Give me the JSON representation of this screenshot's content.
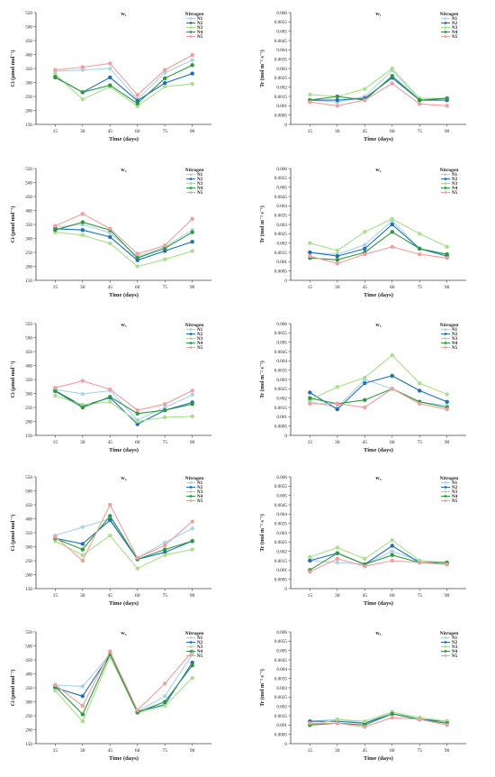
{
  "legend_title": "Nitrogen",
  "series_colors": {
    "N1": "#a8d4ec",
    "N2": "#1f6fb5",
    "N3": "#a8e08c",
    "N4": "#2a9a3c",
    "N5": "#f29e9e"
  },
  "chart_data": [
    {
      "type": "line",
      "title": "w₁",
      "xlabel": "Time (days)",
      "ylabel": "Ci (μmol mol⁻¹)",
      "x": [
        15,
        30,
        45,
        60,
        75,
        90
      ],
      "ylim": [
        150,
        550
      ],
      "yticks": [
        150,
        200,
        250,
        300,
        350,
        400,
        450,
        500,
        550
      ],
      "yticklabels": [
        "150",
        "200",
        "250",
        "300",
        "350",
        "400",
        "450",
        "500",
        "550"
      ],
      "legend": "top-right",
      "series": [
        {
          "name": "N1",
          "values": [
            340,
            345,
            350,
            240,
            335,
            380
          ]
        },
        {
          "name": "N2",
          "values": [
            318,
            265,
            318,
            235,
            298,
            332
          ]
        },
        {
          "name": "N3",
          "values": [
            330,
            240,
            285,
            215,
            285,
            295
          ]
        },
        {
          "name": "N4",
          "values": [
            320,
            265,
            290,
            225,
            315,
            362
          ]
        },
        {
          "name": "N5",
          "values": [
            345,
            355,
            368,
            255,
            345,
            398
          ]
        }
      ]
    },
    {
      "type": "line",
      "title": "w₁",
      "xlabel": "Time (days)",
      "ylabel": "Tr (mol m⁻² s⁻¹)",
      "x": [
        15,
        30,
        45,
        60,
        75,
        90
      ],
      "ylim": [
        0,
        0.006
      ],
      "yticks": [
        0,
        0.0005,
        0.001,
        0.0015,
        0.002,
        0.0025,
        0.003,
        0.0035,
        0.004,
        0.0045,
        0.005,
        0.0055,
        0.006
      ],
      "yticklabels": [
        "0",
        "0.0005",
        "0.001",
        "0.0015",
        "0.002",
        "0.0025",
        "0.003",
        "0.0035",
        "0.004",
        "0.0045",
        "0.005",
        "0.0055",
        "0.006"
      ],
      "legend": "top-right",
      "series": [
        {
          "name": "N1",
          "values": [
            0.0013,
            0.0012,
            0.0015,
            0.0029,
            0.0013,
            0.0013
          ]
        },
        {
          "name": "N2",
          "values": [
            0.0013,
            0.0013,
            0.0014,
            0.0025,
            0.0013,
            0.0013
          ]
        },
        {
          "name": "N3",
          "values": [
            0.0016,
            0.0015,
            0.0019,
            0.003,
            0.0014,
            0.0014
          ]
        },
        {
          "name": "N4",
          "values": [
            0.0013,
            0.0015,
            0.0013,
            0.0026,
            0.0013,
            0.0014
          ]
        },
        {
          "name": "N5",
          "values": [
            0.0012,
            0.001,
            0.0013,
            0.0022,
            0.0011,
            0.001
          ]
        }
      ]
    },
    {
      "type": "line",
      "title": "w₂",
      "xlabel": "Time (days)",
      "ylabel": "Ci (μmol mol⁻¹)",
      "x": [
        15,
        30,
        45,
        60,
        75,
        90
      ],
      "ylim": [
        150,
        550
      ],
      "yticks": [
        150,
        200,
        250,
        300,
        350,
        400,
        450,
        500,
        550
      ],
      "yticklabels": [
        "150",
        "200",
        "250",
        "300",
        "350",
        "400",
        "450",
        "500",
        "550"
      ],
      "legend": "top-right",
      "series": [
        {
          "name": "N1",
          "values": [
            340,
            350,
            320,
            235,
            270,
            330
          ]
        },
        {
          "name": "N2",
          "values": [
            335,
            330,
            305,
            222,
            255,
            288
          ]
        },
        {
          "name": "N3",
          "values": [
            322,
            312,
            282,
            200,
            225,
            255
          ]
        },
        {
          "name": "N4",
          "values": [
            330,
            358,
            330,
            230,
            265,
            322
          ]
        },
        {
          "name": "N5",
          "values": [
            345,
            388,
            335,
            245,
            275,
            370
          ]
        }
      ]
    },
    {
      "type": "line",
      "title": "w₂",
      "xlabel": "Time (days)",
      "ylabel": "Tr (mol m⁻² s⁻¹)",
      "x": [
        15,
        30,
        45,
        60,
        75,
        90
      ],
      "ylim": [
        0,
        0.006
      ],
      "yticks": [
        0,
        0.0005,
        0.001,
        0.0015,
        0.002,
        0.0025,
        0.003,
        0.0035,
        0.004,
        0.0045,
        0.005,
        0.0055,
        0.006
      ],
      "yticklabels": [
        "0",
        "0.0005",
        "0.001",
        "0.0015",
        "0.002",
        "0.0025",
        "0.003",
        "0.0035",
        "0.004",
        "0.0045",
        "0.005",
        "0.0055",
        "0.006"
      ],
      "legend": "top-right",
      "series": [
        {
          "name": "N1",
          "values": [
            0.0015,
            0.0014,
            0.0019,
            0.0032,
            0.0017,
            0.0014
          ]
        },
        {
          "name": "N2",
          "values": [
            0.0015,
            0.0013,
            0.0017,
            0.003,
            0.0017,
            0.0013
          ]
        },
        {
          "name": "N3",
          "values": [
            0.002,
            0.0016,
            0.0026,
            0.0033,
            0.0025,
            0.0018
          ]
        },
        {
          "name": "N4",
          "values": [
            0.0012,
            0.0011,
            0.0015,
            0.0026,
            0.0017,
            0.0014
          ]
        },
        {
          "name": "N5",
          "values": [
            0.0013,
            0.0009,
            0.0014,
            0.0018,
            0.0014,
            0.0012
          ]
        }
      ]
    },
    {
      "type": "line",
      "title": "w₃",
      "xlabel": "Time (days)",
      "ylabel": "Ci (μmol mol⁻¹)",
      "x": [
        15,
        30,
        45,
        60,
        75,
        90
      ],
      "ylim": [
        150,
        550
      ],
      "yticks": [
        150,
        200,
        250,
        300,
        350,
        400,
        450,
        500,
        550
      ],
      "yticklabels": [
        "150",
        "200",
        "250",
        "300",
        "350",
        "400",
        "450",
        "500",
        "550"
      ],
      "legend": "top-right",
      "series": [
        {
          "name": "N1",
          "values": [
            315,
            298,
            310,
            205,
            250,
            295
          ]
        },
        {
          "name": "N2",
          "values": [
            310,
            255,
            285,
            190,
            240,
            268
          ]
        },
        {
          "name": "N3",
          "values": [
            292,
            260,
            270,
            200,
            215,
            218
          ]
        },
        {
          "name": "N4",
          "values": [
            308,
            250,
            288,
            228,
            240,
            262
          ]
        },
        {
          "name": "N5",
          "values": [
            320,
            345,
            315,
            240,
            262,
            310
          ]
        }
      ]
    },
    {
      "type": "line",
      "title": "w₃",
      "xlabel": "Time (days)",
      "ylabel": "Tr (mol m⁻² s⁻¹)",
      "x": [
        15,
        30,
        45,
        60,
        75,
        90
      ],
      "ylim": [
        0,
        0.006
      ],
      "yticks": [
        0,
        0.0005,
        0.001,
        0.0015,
        0.002,
        0.0025,
        0.003,
        0.0035,
        0.004,
        0.0045,
        0.005,
        0.0055,
        0.006
      ],
      "yticklabels": [
        "0",
        "0.0005",
        "0.001",
        "0.0015",
        "0.002",
        "0.0025",
        "0.003",
        "0.0035",
        "0.004",
        "0.0045",
        "0.005",
        "0.0055",
        "0.006"
      ],
      "legend": "top-right",
      "series": [
        {
          "name": "N1",
          "values": [
            0.0018,
            0.0015,
            0.003,
            0.0025,
            0.0018,
            0.0016
          ]
        },
        {
          "name": "N2",
          "values": [
            0.0023,
            0.0014,
            0.0028,
            0.0032,
            0.0024,
            0.0018
          ]
        },
        {
          "name": "N3",
          "values": [
            0.0019,
            0.0026,
            0.0031,
            0.0043,
            0.0028,
            0.0022
          ]
        },
        {
          "name": "N4",
          "values": [
            0.002,
            0.0017,
            0.0019,
            0.0025,
            0.0018,
            0.0015
          ]
        },
        {
          "name": "N5",
          "values": [
            0.0017,
            0.0017,
            0.0015,
            0.0025,
            0.0017,
            0.0014
          ]
        }
      ]
    },
    {
      "type": "line",
      "title": "w₄",
      "xlabel": "Time (days)",
      "ylabel": "Ci (μmol mol⁻¹)",
      "x": [
        15,
        30,
        45,
        60,
        75,
        90
      ],
      "ylim": [
        150,
        550
      ],
      "yticks": [
        150,
        200,
        250,
        300,
        350,
        400,
        450,
        500,
        550
      ],
      "yticklabels": [
        "150",
        "200",
        "250",
        "300",
        "350",
        "400",
        "450",
        "500",
        "550"
      ],
      "legend": "top-right",
      "series": [
        {
          "name": "N1",
          "values": [
            340,
            370,
            400,
            260,
            315,
            365
          ]
        },
        {
          "name": "N2",
          "values": [
            330,
            310,
            395,
            255,
            280,
            320
          ]
        },
        {
          "name": "N3",
          "values": [
            320,
            270,
            340,
            222,
            270,
            290
          ]
        },
        {
          "name": "N4",
          "values": [
            330,
            290,
            410,
            255,
            290,
            320
          ]
        },
        {
          "name": "N5",
          "values": [
            335,
            250,
            450,
            260,
            305,
            390
          ]
        }
      ]
    },
    {
      "type": "line",
      "title": "w₄",
      "xlabel": "Time (days)",
      "ylabel": "Tr (mol m⁻² s⁻¹)",
      "x": [
        15,
        30,
        45,
        60,
        75,
        90
      ],
      "ylim": [
        0,
        0.006
      ],
      "yticks": [
        0,
        0.0005,
        0.001,
        0.0015,
        0.002,
        0.0025,
        0.003,
        0.0035,
        0.004,
        0.0045,
        0.005,
        0.0055,
        0.006
      ],
      "yticklabels": [
        "0",
        "0.0005",
        "0.001",
        "0.0015",
        "0.002",
        "0.0025",
        "0.003",
        "0.0035",
        "0.004",
        "0.0045",
        "0.005",
        "0.0055",
        "0.006"
      ],
      "legend": "top-right",
      "series": [
        {
          "name": "N1",
          "values": [
            0.0015,
            0.0014,
            0.0013,
            0.002,
            0.0015,
            0.0014
          ]
        },
        {
          "name": "N2",
          "values": [
            0.0015,
            0.0019,
            0.0013,
            0.0023,
            0.0014,
            0.0013
          ]
        },
        {
          "name": "N3",
          "values": [
            0.0017,
            0.0022,
            0.0016,
            0.0026,
            0.0015,
            0.0014
          ]
        },
        {
          "name": "N4",
          "values": [
            0.001,
            0.0019,
            0.0013,
            0.0018,
            0.0014,
            0.0014
          ]
        },
        {
          "name": "N5",
          "values": [
            0.0009,
            0.0016,
            0.0012,
            0.0015,
            0.0014,
            0.0013
          ]
        }
      ]
    },
    {
      "type": "line",
      "title": "w₅",
      "xlabel": "Time (days)",
      "ylabel": "Ci (μmol mol⁻¹)",
      "x": [
        15,
        30,
        45,
        60,
        75,
        90
      ],
      "ylim": [
        150,
        550
      ],
      "yticks": [
        150,
        200,
        250,
        300,
        350,
        400,
        450,
        500,
        550
      ],
      "yticklabels": [
        "150",
        "200",
        "250",
        "300",
        "350",
        "400",
        "450",
        "500",
        "550"
      ],
      "legend": "top-right",
      "series": [
        {
          "name": "N1",
          "values": [
            360,
            355,
            470,
            265,
            320,
            470
          ]
        },
        {
          "name": "N2",
          "values": [
            350,
            320,
            470,
            265,
            290,
            440
          ]
        },
        {
          "name": "N3",
          "values": [
            340,
            230,
            460,
            260,
            285,
            385
          ]
        },
        {
          "name": "N4",
          "values": [
            355,
            255,
            470,
            262,
            300,
            430
          ]
        },
        {
          "name": "N5",
          "values": [
            360,
            285,
            480,
            270,
            365,
            480
          ]
        }
      ]
    },
    {
      "type": "line",
      "title": "w₅",
      "xlabel": "Time (days)",
      "ylabel": "Tr (mol m⁻² s⁻¹)",
      "x": [
        15,
        30,
        45,
        60,
        75,
        90
      ],
      "ylim": [
        0,
        0.006
      ],
      "yticks": [
        0,
        0.0005,
        0.001,
        0.0015,
        0.002,
        0.0025,
        0.003,
        0.0035,
        0.004,
        0.0045,
        0.005,
        0.0055,
        0.006
      ],
      "yticklabels": [
        "0",
        "0.0005",
        "0.001",
        "0.0015",
        "0.002",
        "0.0025",
        "0.003",
        "0.0035",
        "0.004",
        "0.0045",
        "0.005",
        "0.0055",
        "0.006"
      ],
      "legend": "top-right",
      "series": [
        {
          "name": "N1",
          "values": [
            0.0012,
            0.0013,
            0.0011,
            0.0017,
            0.0013,
            0.0012
          ]
        },
        {
          "name": "N2",
          "values": [
            0.0012,
            0.0012,
            0.0011,
            0.0016,
            0.0013,
            0.0012
          ]
        },
        {
          "name": "N3",
          "values": [
            0.001,
            0.0013,
            0.0012,
            0.0017,
            0.0014,
            0.0012
          ]
        },
        {
          "name": "N4",
          "values": [
            0.001,
            0.0011,
            0.001,
            0.0016,
            0.0013,
            0.0011
          ]
        },
        {
          "name": "N5",
          "values": [
            0.0011,
            0.0011,
            0.0009,
            0.0014,
            0.0013,
            0.001
          ]
        }
      ]
    }
  ]
}
